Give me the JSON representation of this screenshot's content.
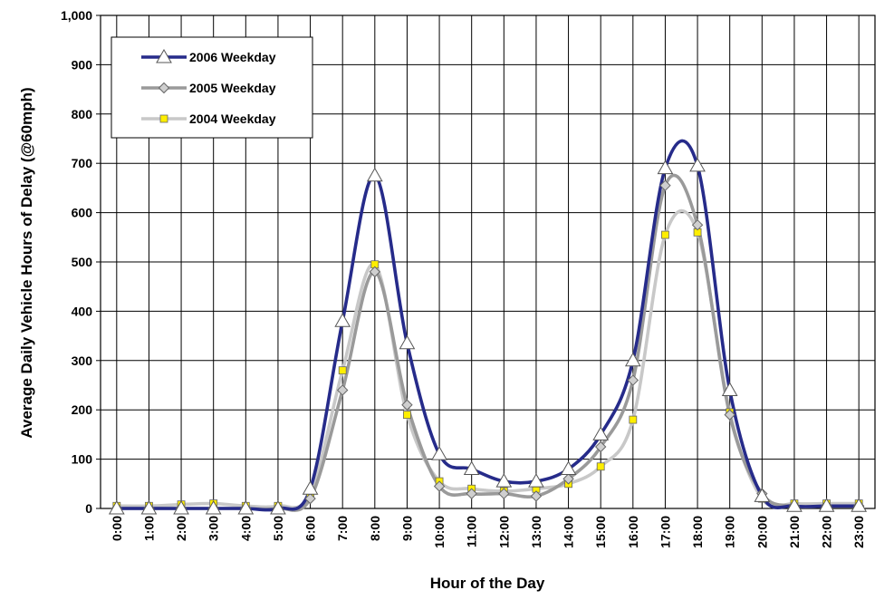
{
  "chart_data": {
    "type": "line",
    "title": "",
    "xlabel": "Hour of the Day",
    "ylabel": "Average Daily Vehicle Hours of Delay (@60mph)",
    "ylim": [
      0,
      1000
    ],
    "yticks": [
      "0",
      "100",
      "200",
      "300",
      "400",
      "500",
      "600",
      "700",
      "800",
      "900",
      "1,000"
    ],
    "categories": [
      "0:00",
      "1:00",
      "2:00",
      "3:00",
      "4:00",
      "5:00",
      "6:00",
      "7:00",
      "8:00",
      "9:00",
      "10:00",
      "11:00",
      "12:00",
      "13:00",
      "14:00",
      "15:00",
      "16:00",
      "17:00",
      "18:00",
      "19:00",
      "20:00",
      "21:00",
      "22:00",
      "23:00"
    ],
    "grid": true,
    "legend_position": "top-left",
    "series": [
      {
        "name": "2006 Weekday",
        "color": "#262b8a",
        "marker": "triangle",
        "values": [
          0,
          0,
          0,
          0,
          0,
          0,
          40,
          380,
          675,
          335,
          110,
          80,
          55,
          55,
          80,
          150,
          300,
          690,
          695,
          240,
          25,
          5,
          5,
          5
        ]
      },
      {
        "name": "2005 Weekday",
        "color": "#9a9a9a",
        "marker": "diamond",
        "values": [
          0,
          0,
          0,
          0,
          0,
          0,
          20,
          240,
          480,
          210,
          45,
          30,
          30,
          25,
          60,
          125,
          260,
          655,
          575,
          190,
          30,
          5,
          5,
          5
        ]
      },
      {
        "name": "2004 Weekday",
        "color": "#c8c8c8",
        "marker": "square",
        "marker_fill": "#ffee00",
        "values": [
          5,
          5,
          8,
          10,
          5,
          5,
          30,
          280,
          495,
          190,
          55,
          40,
          35,
          40,
          50,
          85,
          180,
          555,
          560,
          195,
          20,
          10,
          10,
          10
        ]
      }
    ]
  }
}
